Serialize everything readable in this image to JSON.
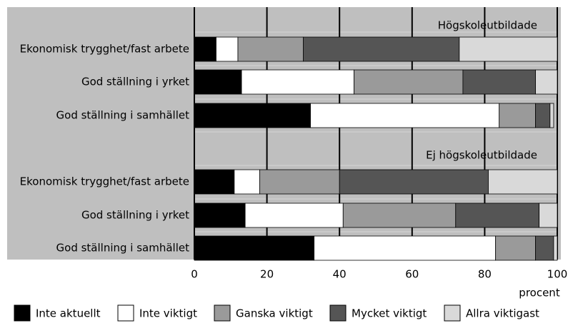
{
  "chart_data": {
    "type": "stacked-bar",
    "group_labels": [
      "Högskoleutbildade",
      "Ej högskoleutbildade"
    ],
    "categories": [
      "Ekonomisk trygghet/fast arbete",
      "God ställning i yrket",
      "God ställning i samhället",
      "Ekonomisk trygghet/fast arbete",
      "God ställning i yrket",
      "God ställning i samhället"
    ],
    "series": [
      {
        "name": "Inte aktuellt",
        "color": "#000000",
        "values": [
          6,
          13,
          32,
          11,
          14,
          33
        ]
      },
      {
        "name": "Inte viktigt",
        "color": "#ffffff",
        "values": [
          6,
          31,
          52,
          7,
          27,
          50
        ]
      },
      {
        "name": "Ganska viktigt",
        "color": "#9a9a9a",
        "values": [
          18,
          30,
          10,
          22,
          31,
          11
        ]
      },
      {
        "name": "Mycket viktigt",
        "color": "#555555",
        "values": [
          43,
          20,
          4,
          41,
          23,
          5
        ]
      },
      {
        "name": "Allra viktigast",
        "color": "#d9d9d9",
        "values": [
          27,
          6,
          1,
          19,
          5,
          1
        ]
      }
    ],
    "xlabel": "procent",
    "xlim": [
      0,
      100
    ],
    "xticks": [
      0,
      20,
      40,
      60,
      80,
      100
    ],
    "grid": true
  }
}
